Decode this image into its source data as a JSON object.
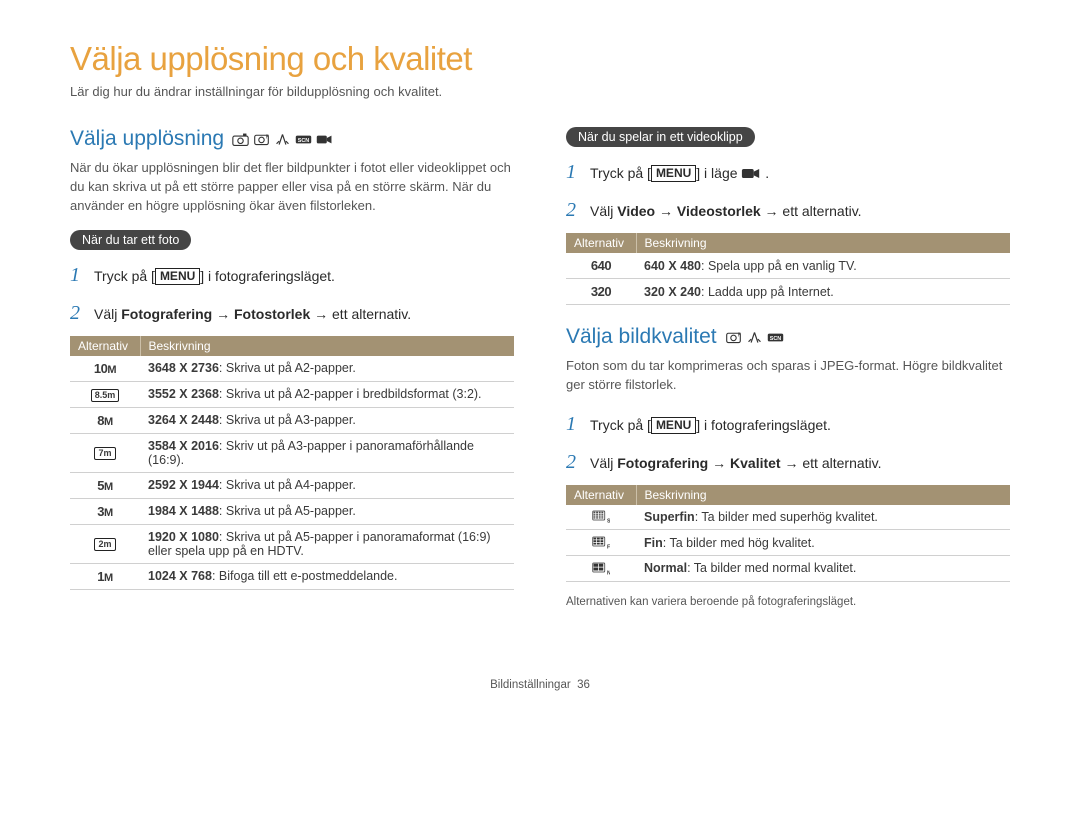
{
  "colors": {
    "accent_orange": "#e8a23f",
    "accent_blue": "#2b79b3",
    "table_header_bg": "#a39273",
    "pill_bg": "#454545",
    "text_gray": "#565656",
    "border_gray": "#d0d0d0"
  },
  "main_title": "Välja upplösning och kvalitet",
  "subtitle": "Lär dig hur du ändrar inställningar för bildupplösning och kvalitet.",
  "left": {
    "heading": "Välja upplösning",
    "intro": "När du ökar upplösningen blir det fler bildpunkter i fotot eller videoklippet och du kan skriva ut på ett större papper eller visa på en större skärm. När du använder en högre upplösning ökar även filstorleken.",
    "pill": "När du tar ett foto",
    "step1_pre": "Tryck på [",
    "menu_label": "MENU",
    "step1_post": "] i fotograferingsläget.",
    "step2_pre": "Välj ",
    "step2_bold": "Fotografering → Fotostorlek",
    "step2_post": " → ett alternativ.",
    "th_alt": "Alternativ",
    "th_desc": "Beskrivning",
    "rows": [
      {
        "icon": "10m",
        "bold": "3648 X 2736",
        "text": ": Skriva ut på A2-papper."
      },
      {
        "icon": "box-8.5m",
        "bold": "3552 X 2368",
        "text": ": Skriva ut på A2-papper i bredbildsformat (3:2)."
      },
      {
        "icon": "8m",
        "bold": "3264 X 2448",
        "text": ": Skriva ut på A3-papper."
      },
      {
        "icon": "box-7m",
        "bold": "3584 X 2016",
        "text": ": Skriv ut på A3-papper i panoramaförhållande (16:9)."
      },
      {
        "icon": "5m",
        "bold": "2592 X 1944",
        "text": ": Skriva ut på A4-papper."
      },
      {
        "icon": "3m",
        "bold": "1984 X 1488",
        "text": ": Skriva ut på A5-papper."
      },
      {
        "icon": "box-2m",
        "bold": "1920 X 1080",
        "text": ": Skriva ut på A5-papper i panoramaformat (16:9) eller spela upp på en HDTV."
      },
      {
        "icon": "1m",
        "bold": "1024 X 768",
        "text": ": Bifoga till ett e-postmeddelande."
      }
    ]
  },
  "right": {
    "pill_video": "När du spelar in ett videoklipp",
    "v_step1_pre": "Tryck på [",
    "v_step1_post": "] i läge ",
    "v_step2_pre": "Välj ",
    "v_step2_bold": "Video → Videostorlek",
    "v_step2_post": " → ett alternativ.",
    "th_alt": "Alternativ",
    "th_desc": "Beskrivning",
    "vrows": [
      {
        "icon": "640",
        "bold": "640 X 480",
        "text": ": Spela upp på en vanlig TV."
      },
      {
        "icon": "320",
        "bold": "320 X 240",
        "text": ": Ladda upp på Internet."
      }
    ],
    "q_heading": "Välja bildkvalitet",
    "q_intro": "Foton som du tar komprimeras och sparas i JPEG-format. Högre bildkvalitet ger större filstorlek.",
    "q_step1_pre": "Tryck på [",
    "q_step1_post": "] i fotograferingsläget.",
    "q_step2_pre": "Välj ",
    "q_step2_bold": "Fotografering → Kvalitet",
    "q_step2_post": " → ett alternativ.",
    "qrows": [
      {
        "icon": "sf",
        "bold": "Superfin",
        "text": ": Ta bilder med superhög kvalitet."
      },
      {
        "icon": "f",
        "bold": "Fin",
        "text": ": Ta bilder med hög kvalitet."
      },
      {
        "icon": "n",
        "bold": "Normal",
        "text": ": Ta bilder med normal kvalitet."
      }
    ],
    "footnote": "Alternativen kan variera beroende på fotograferingsläget."
  },
  "footer": {
    "section": "Bildinställningar",
    "page": "36"
  }
}
